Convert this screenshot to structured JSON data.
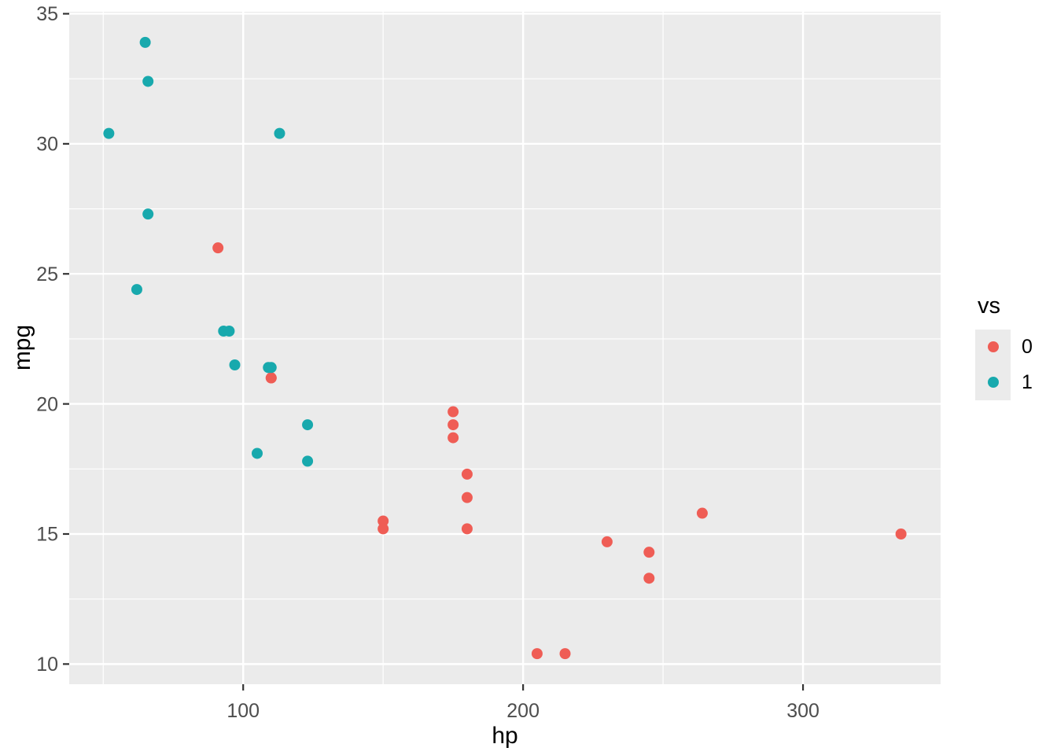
{
  "figure": {
    "background": "#FFFFFF"
  },
  "chart_data": {
    "type": "scatter",
    "title": "",
    "xlabel": "hp",
    "ylabel": "mpg",
    "xlim": [
      37.85,
      349.15
    ],
    "ylim": [
      9.225,
      35.075
    ],
    "x_major_ticks": [
      100,
      200,
      300
    ],
    "x_minor_ticks": [
      50,
      150,
      250
    ],
    "y_major_ticks": [
      10,
      15,
      20,
      25,
      30,
      35
    ],
    "y_minor_ticks": [
      12.5,
      17.5,
      22.5,
      27.5,
      32.5
    ],
    "grid": "white major and minor gridlines on gray panel",
    "legend": {
      "title": "vs",
      "position": "right"
    },
    "series": [
      {
        "name": "0",
        "color": "#EF5D55",
        "points": [
          [
            91,
            26.0
          ],
          [
            110,
            21.0
          ],
          [
            110,
            21.0
          ],
          [
            150,
            15.5
          ],
          [
            150,
            15.2
          ],
          [
            175,
            19.7
          ],
          [
            175,
            19.2
          ],
          [
            175,
            18.7
          ],
          [
            180,
            17.3
          ],
          [
            180,
            16.4
          ],
          [
            180,
            15.2
          ],
          [
            205,
            10.4
          ],
          [
            215,
            10.4
          ],
          [
            230,
            14.7
          ],
          [
            245,
            14.3
          ],
          [
            245,
            13.3
          ],
          [
            264,
            15.8
          ],
          [
            335,
            15.0
          ]
        ]
      },
      {
        "name": "1",
        "color": "#18A9AD",
        "points": [
          [
            52,
            30.4
          ],
          [
            62,
            24.4
          ],
          [
            65,
            33.9
          ],
          [
            66,
            32.4
          ],
          [
            66,
            27.3
          ],
          [
            93,
            22.8
          ],
          [
            95,
            22.8
          ],
          [
            97,
            21.5
          ],
          [
            105,
            18.1
          ],
          [
            109,
            21.4
          ],
          [
            110,
            21.4
          ],
          [
            113,
            30.4
          ],
          [
            123,
            19.2
          ],
          [
            123,
            17.8
          ]
        ]
      }
    ]
  },
  "style": {
    "panel_bg": "#EBEBEB",
    "grid_color": "#FFFFFF",
    "tick_mark_color": "#333333",
    "tick_label_color": "#4D4D4D",
    "axis_title_color": "#000000",
    "point_radius": 7
  }
}
